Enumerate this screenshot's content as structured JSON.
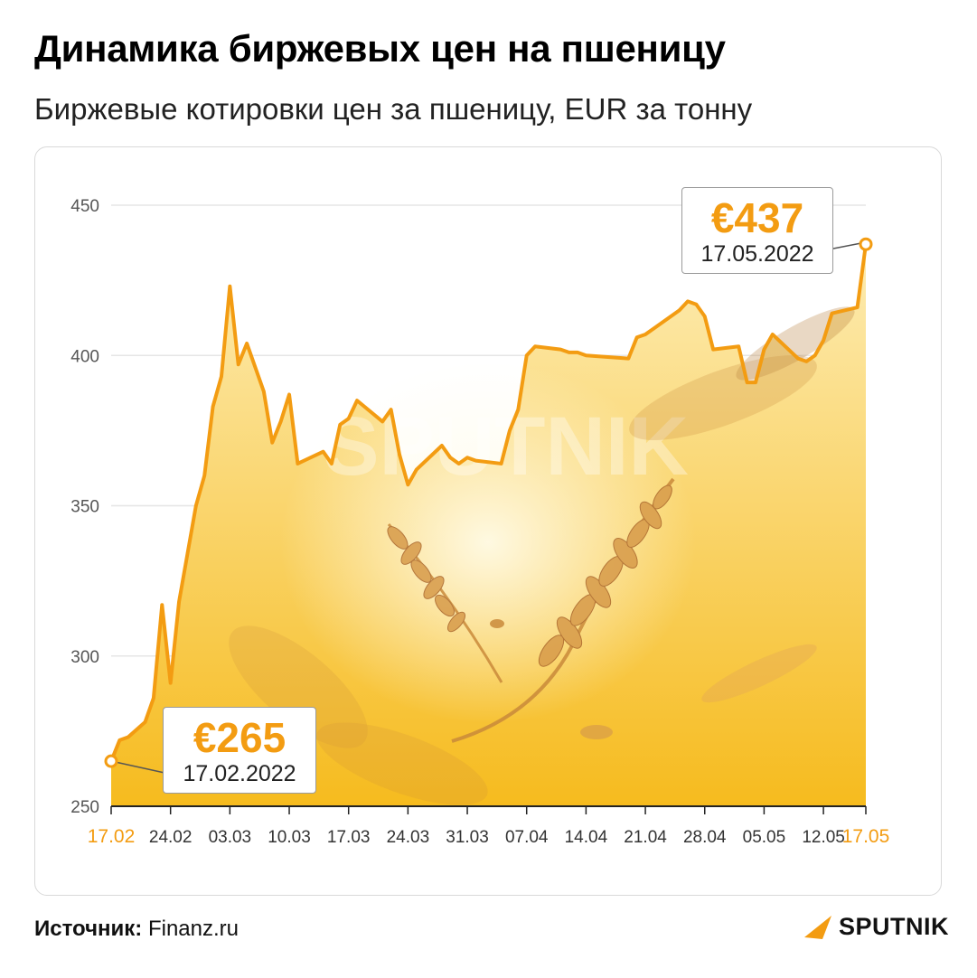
{
  "header": {
    "title": "Динамика биржевых цен на пшеницу",
    "subtitle": "Биржевые котировки цен за пшеницу, EUR за тонну"
  },
  "callouts": {
    "start": {
      "price": "€265",
      "date": "17.02.2022"
    },
    "end": {
      "price": "€437",
      "date": "17.05.2022"
    }
  },
  "watermark": "SPUTNIK",
  "footer": {
    "source_label": "Источник:",
    "source_value": "Finanz.ru",
    "logo_text": "SPUTNIK"
  },
  "colors": {
    "line": "#f39c12",
    "area_top": "#fde9a8",
    "area_bottom": "#f6bb1e",
    "grid": "#e6e6e6",
    "highlight_tick": "#f39c12",
    "tick": "#333333"
  },
  "chart_data": {
    "type": "area",
    "ylim": [
      250,
      450
    ],
    "yticks": [
      250,
      300,
      350,
      400,
      450
    ],
    "xticks": [
      "17.02",
      "24.02",
      "03.03",
      "10.03",
      "17.03",
      "24.03",
      "31.03",
      "07.04",
      "14.04",
      "21.04",
      "28.04",
      "05.05",
      "12.05",
      "17.05"
    ],
    "highlight_xticks": [
      "17.02",
      "17.05"
    ],
    "grid": true,
    "series": [
      {
        "x": [
          "17.02",
          "18.02",
          "19.02",
          "21.02",
          "22.02",
          "23.02",
          "24.02",
          "25.02",
          "27.02",
          "28.02",
          "01.03",
          "02.03",
          "03.03",
          "04.03",
          "05.03",
          "07.03",
          "08.03",
          "09.03",
          "10.03",
          "11.03",
          "14.03",
          "15.03",
          "16.03",
          "17.03",
          "18.03",
          "21.03",
          "22.03",
          "23.03",
          "24.03",
          "25.03",
          "28.03",
          "29.03",
          "30.03",
          "31.03",
          "01.04",
          "04.04",
          "05.04",
          "06.04",
          "07.04",
          "08.04",
          "11.04",
          "12.04",
          "13.04",
          "14.04",
          "19.04",
          "20.04",
          "21.04",
          "22.04",
          "25.04",
          "26.04",
          "27.04",
          "28.04",
          "29.04",
          "02.05",
          "03.05",
          "04.05",
          "05.05",
          "06.05",
          "09.05",
          "10.05",
          "11.05",
          "12.05",
          "13.05",
          "16.05",
          "17.05"
        ],
        "values": [
          265,
          272,
          273,
          278,
          286,
          317,
          291,
          318,
          350,
          360,
          383,
          393,
          423,
          397,
          404,
          388,
          371,
          378,
          387,
          364,
          368,
          364,
          377,
          379,
          385,
          378,
          382,
          367,
          357,
          362,
          370,
          366,
          364,
          366,
          365,
          364,
          375,
          382,
          400,
          403,
          402,
          401,
          401,
          400,
          399,
          406,
          407,
          409,
          415,
          418,
          417,
          413,
          402,
          403,
          391,
          391,
          402,
          407,
          399,
          398,
          400,
          405,
          414,
          416,
          437
        ]
      }
    ]
  }
}
